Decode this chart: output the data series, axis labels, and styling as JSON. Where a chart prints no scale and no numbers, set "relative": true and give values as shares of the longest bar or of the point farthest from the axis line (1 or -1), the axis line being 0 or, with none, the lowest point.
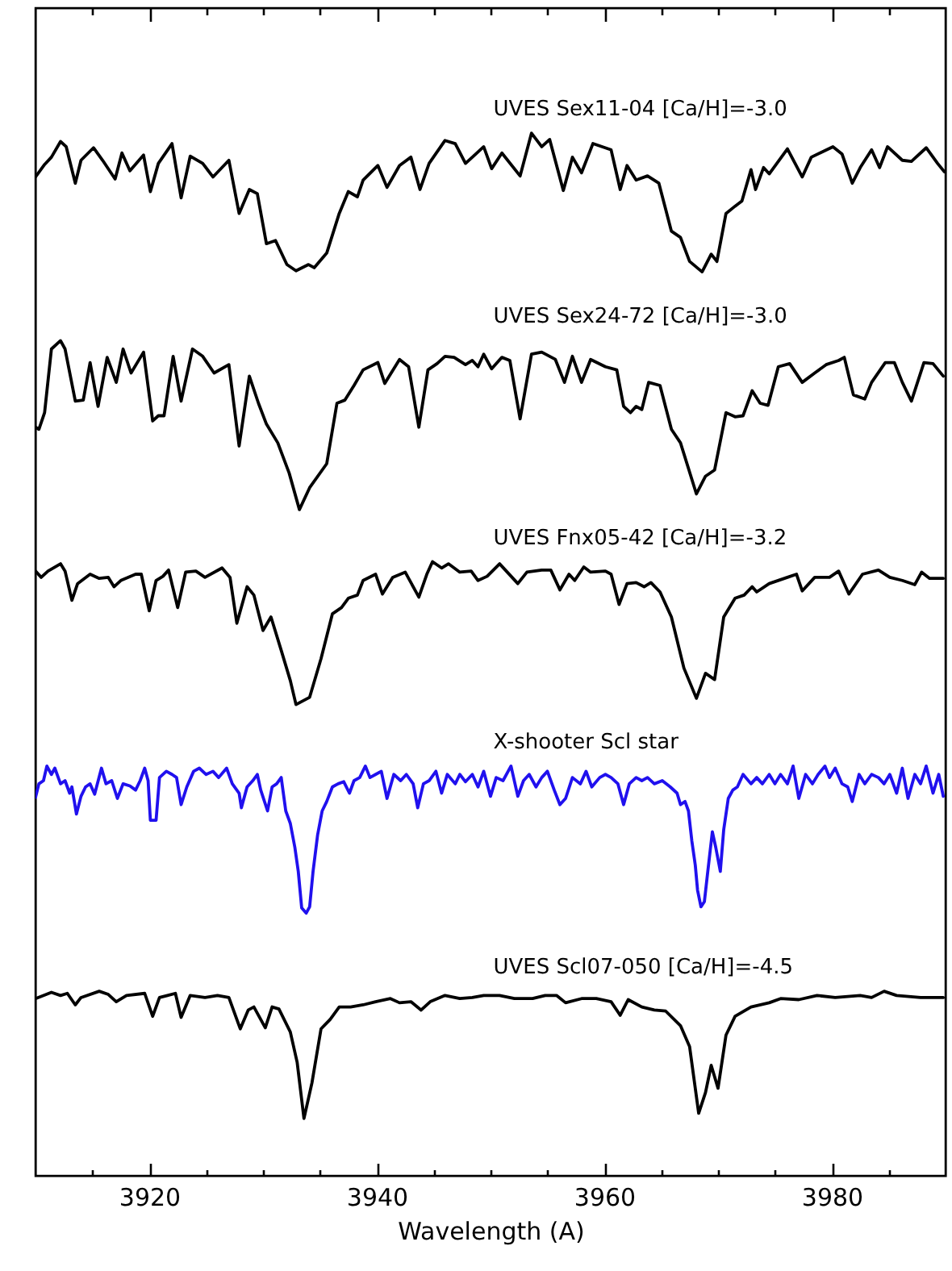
{
  "chart_data": {
    "type": "line",
    "xlabel": "Wavelength (A)",
    "xlim": [
      3910,
      3990
    ],
    "xticks": [
      {
        "value": 3915,
        "label": null
      },
      3920,
      {
        "value": 3925,
        "label": null
      },
      {
        "value": 3930,
        "label": null
      },
      {
        "value": 3935,
        "label": null
      },
      3940,
      {
        "value": 3945,
        "label": null
      },
      {
        "value": 3950,
        "label": null
      },
      {
        "value": 3955,
        "label": null
      },
      3960,
      {
        "value": 3965,
        "label": null
      },
      {
        "value": 3970,
        "label": null
      },
      {
        "value": 3975,
        "label": null
      },
      3980,
      {
        "value": 3985,
        "label": null
      }
    ],
    "relative": true,
    "series": [
      {
        "name": "UVES Sex11-04 [Ca/H]=-3.0",
        "color": "#000000",
        "x": [
          3910.0,
          3910.8,
          3911.4,
          3912.2,
          3912.7,
          3913.5,
          3914.0,
          3915.1,
          3915.9,
          3917.0,
          3917.6,
          3918.3,
          3919.5,
          3920.1,
          3920.8,
          3922.0,
          3922.8,
          3923.6,
          3924.7,
          3925.6,
          3927.0,
          3927.9,
          3928.8,
          3929.5,
          3930.3,
          3931.1,
          3932.1,
          3932.9,
          3934.0,
          3934.5,
          3935.6,
          3936.7,
          3937.5,
          3938.3,
          3938.8,
          3940.1,
          3940.9,
          3942.0,
          3943.0,
          3943.8,
          3944.6,
          3946.0,
          3946.9,
          3947.8,
          3948.5,
          3949.4,
          3950.1,
          3951.0,
          3952.6,
          3953.6,
          3954.5,
          3955.2,
          3956.4,
          3957.2,
          3958.0,
          3959.0,
          3960.6,
          3961.4,
          3962.0,
          3962.8,
          3963.8,
          3964.8,
          3965.9,
          3966.7,
          3967.5,
          3968.6,
          3969.4,
          3969.9,
          3970.7,
          3971.5,
          3972.1,
          3972.9,
          3973.3,
          3974.0,
          3974.5,
          3976.1,
          3977.4,
          3978.2,
          3980.1,
          3980.9,
          3981.8,
          3982.5,
          3983.5,
          3984.2,
          3984.9,
          3986.2,
          3987.0,
          3988.3,
          3989.3,
          3989.9
        ],
        "values": [
          0.958,
          0.97,
          0.977,
          0.992,
          0.987,
          0.952,
          0.974,
          0.986,
          0.974,
          0.956,
          0.981,
          0.964,
          0.979,
          0.944,
          0.971,
          0.99,
          0.938,
          0.978,
          0.971,
          0.958,
          0.974,
          0.923,
          0.946,
          0.942,
          0.894,
          0.897,
          0.874,
          0.868,
          0.874,
          0.871,
          0.885,
          0.923,
          0.944,
          0.939,
          0.955,
          0.969,
          0.948,
          0.969,
          0.977,
          0.946,
          0.971,
          0.993,
          0.99,
          0.971,
          0.978,
          0.987,
          0.966,
          0.981,
          0.959,
          1.0,
          0.987,
          0.994,
          0.945,
          0.977,
          0.962,
          0.99,
          0.984,
          0.946,
          0.969,
          0.955,
          0.959,
          0.952,
          0.906,
          0.9,
          0.877,
          0.867,
          0.884,
          0.877,
          0.923,
          0.93,
          0.935,
          0.965,
          0.946,
          0.967,
          0.961,
          0.985,
          0.958,
          0.977,
          0.987,
          0.98,
          0.952,
          0.967,
          0.984,
          0.967,
          0.987,
          0.974,
          0.973,
          0.986,
          0.971,
          0.963
        ]
      },
      {
        "name": "UVES Sex24-72 [Ca/H]=-3.0",
        "color": "#000000",
        "x": [
          3910.0,
          3910.3,
          3910.8,
          3911.4,
          3912.2,
          3912.6,
          3913.5,
          3914.2,
          3914.8,
          3915.5,
          3916.3,
          3917.1,
          3917.7,
          3918.4,
          3919.5,
          3920.3,
          3920.8,
          3921.3,
          3922.1,
          3922.8,
          3923.8,
          3924.7,
          3925.7,
          3927.0,
          3927.9,
          3928.8,
          3929.6,
          3930.3,
          3931.3,
          3932.3,
          3933.2,
          3934.1,
          3935.6,
          3936.5,
          3937.2,
          3938.0,
          3938.8,
          3940.1,
          3940.7,
          3942.0,
          3942.8,
          3943.7,
          3944.5,
          3945.3,
          3946.0,
          3946.8,
          3947.8,
          3948.4,
          3948.9,
          3949.4,
          3950.1,
          3951.0,
          3951.7,
          3952.6,
          3953.6,
          3954.5,
          3955.7,
          3956.5,
          3957.2,
          3958.0,
          3958.8,
          3960.1,
          3961.1,
          3961.7,
          3962.3,
          3962.8,
          3963.3,
          3963.9,
          3964.9,
          3965.9,
          3966.7,
          3968.1,
          3968.9,
          3969.7,
          3970.7,
          3971.5,
          3972.2,
          3973.0,
          3973.7,
          3974.4,
          3975.3,
          3976.3,
          3977.4,
          3978.5,
          3979.5,
          3980.6,
          3981.1,
          3981.9,
          3982.9,
          3983.5,
          3984.7,
          3985.5,
          3986.2,
          3987.0,
          3988.1,
          3988.9,
          3989.8
        ],
        "values": [
          0.718,
          0.716,
          0.732,
          0.793,
          0.801,
          0.793,
          0.743,
          0.744,
          0.78,
          0.738,
          0.785,
          0.761,
          0.793,
          0.77,
          0.79,
          0.724,
          0.729,
          0.729,
          0.786,
          0.743,
          0.793,
          0.786,
          0.77,
          0.778,
          0.7,
          0.767,
          0.741,
          0.721,
          0.703,
          0.674,
          0.639,
          0.66,
          0.683,
          0.741,
          0.744,
          0.758,
          0.773,
          0.78,
          0.76,
          0.783,
          0.776,
          0.718,
          0.773,
          0.779,
          0.786,
          0.785,
          0.778,
          0.782,
          0.776,
          0.788,
          0.774,
          0.785,
          0.782,
          0.726,
          0.788,
          0.79,
          0.783,
          0.761,
          0.786,
          0.761,
          0.783,
          0.776,
          0.773,
          0.738,
          0.732,
          0.738,
          0.735,
          0.761,
          0.758,
          0.716,
          0.703,
          0.654,
          0.671,
          0.677,
          0.732,
          0.728,
          0.729,
          0.753,
          0.741,
          0.739,
          0.776,
          0.779,
          0.761,
          0.77,
          0.778,
          0.782,
          0.785,
          0.749,
          0.745,
          0.761,
          0.78,
          0.78,
          0.761,
          0.743,
          0.78,
          0.779,
          0.767
        ]
      },
      {
        "name": "UVES Fnx05-42 [Ca/H]=-3.2",
        "color": "#000000",
        "x": [
          3910.0,
          3910.5,
          3911.1,
          3912.2,
          3912.6,
          3913.2,
          3913.7,
          3914.8,
          3915.6,
          3916.4,
          3916.9,
          3917.5,
          3918.8,
          3919.3,
          3920.0,
          3920.6,
          3921.2,
          3921.7,
          3922.5,
          3923.2,
          3924.1,
          3924.9,
          3926.4,
          3927.1,
          3927.7,
          3928.6,
          3929.2,
          3930.0,
          3930.7,
          3931.6,
          3932.4,
          3932.9,
          3934.1,
          3935.1,
          3936.1,
          3936.9,
          3937.5,
          3938.3,
          3938.8,
          3939.9,
          3940.5,
          3941.4,
          3942.5,
          3943.7,
          3944.4,
          3944.9,
          3945.7,
          3946.3,
          3947.3,
          3948.3,
          3948.9,
          3949.7,
          3950.8,
          3952.4,
          3953.2,
          3954.5,
          3955.3,
          3956.1,
          3956.9,
          3957.4,
          3958.2,
          3958.8,
          3960.1,
          3960.6,
          3961.3,
          3962.0,
          3962.8,
          3963.5,
          3964.1,
          3964.9,
          3965.9,
          3967.0,
          3968.1,
          3968.9,
          3969.7,
          3970.5,
          3971.5,
          3972.3,
          3973.0,
          3973.4,
          3974.5,
          3976.1,
          3976.9,
          3977.4,
          3978.5,
          3979.8,
          3980.6,
          3981.5,
          3982.7,
          3984.1,
          3985.1,
          3986.2,
          3987.3,
          3987.9,
          3988.6,
          3989.8
        ],
        "values": [
          0.58,
          0.574,
          0.58,
          0.587,
          0.58,
          0.552,
          0.568,
          0.577,
          0.573,
          0.574,
          0.565,
          0.571,
          0.577,
          0.577,
          0.542,
          0.571,
          0.575,
          0.581,
          0.545,
          0.579,
          0.58,
          0.574,
          0.583,
          0.574,
          0.53,
          0.565,
          0.557,
          0.523,
          0.536,
          0.504,
          0.475,
          0.452,
          0.459,
          0.496,
          0.539,
          0.545,
          0.554,
          0.557,
          0.571,
          0.577,
          0.558,
          0.574,
          0.579,
          0.555,
          0.577,
          0.589,
          0.583,
          0.587,
          0.579,
          0.58,
          0.571,
          0.575,
          0.587,
          0.568,
          0.579,
          0.581,
          0.581,
          0.562,
          0.577,
          0.571,
          0.584,
          0.579,
          0.58,
          0.577,
          0.548,
          0.568,
          0.569,
          0.565,
          0.569,
          0.56,
          0.536,
          0.487,
          0.458,
          0.482,
          0.476,
          0.536,
          0.554,
          0.557,
          0.565,
          0.56,
          0.568,
          0.574,
          0.577,
          0.561,
          0.574,
          0.574,
          0.58,
          0.558,
          0.577,
          0.581,
          0.574,
          0.571,
          0.567,
          0.579,
          0.573,
          0.573
        ]
      },
      {
        "name": "X-shooter Scl star",
        "color": "#2010ee",
        "x": [
          3910.0,
          3910.3,
          3910.7,
          3911.0,
          3911.4,
          3911.7,
          3912.2,
          3912.6,
          3913.0,
          3913.2,
          3913.6,
          3914.0,
          3914.4,
          3914.8,
          3915.2,
          3915.8,
          3916.2,
          3916.7,
          3917.2,
          3917.7,
          3918.3,
          3918.8,
          3919.2,
          3919.6,
          3919.9,
          3920.1,
          3920.6,
          3920.9,
          3921.5,
          3922.0,
          3922.4,
          3922.8,
          3923.3,
          3923.9,
          3924.4,
          3925.0,
          3925.6,
          3926.1,
          3926.8,
          3927.3,
          3927.9,
          3928.1,
          3928.6,
          3929.1,
          3929.5,
          3929.8,
          3930.4,
          3930.8,
          3931.2,
          3931.6,
          3932.0,
          3932.4,
          3932.8,
          3933.1,
          3933.4,
          3933.8,
          3934.1,
          3934.4,
          3934.8,
          3935.2,
          3935.6,
          3936.1,
          3936.6,
          3937.1,
          3937.6,
          3938.0,
          3938.5,
          3939.0,
          3939.4,
          3939.9,
          3940.4,
          3940.9,
          3941.5,
          3942.1,
          3942.6,
          3943.2,
          3943.6,
          3944.1,
          3944.6,
          3945.2,
          3945.7,
          3946.2,
          3946.9,
          3947.3,
          3947.8,
          3948.4,
          3948.9,
          3949.4,
          3950.0,
          3950.5,
          3951.1,
          3951.8,
          3952.4,
          3952.9,
          3953.4,
          3954.0,
          3954.5,
          3955.0,
          3955.6,
          3956.1,
          3956.6,
          3957.2,
          3957.9,
          3958.4,
          3958.9,
          3959.6,
          3960.1,
          3960.6,
          3961.2,
          3961.7,
          3962.2,
          3962.8,
          3963.3,
          3963.8,
          3964.4,
          3965.1,
          3965.8,
          3966.4,
          3966.7,
          3967.1,
          3967.4,
          3967.7,
          3968.0,
          3968.2,
          3968.5,
          3968.8,
          3969.1,
          3969.5,
          3969.8,
          3970.2,
          3970.5,
          3970.9,
          3971.3,
          3971.7,
          3972.2,
          3972.9,
          3973.4,
          3973.9,
          3974.5,
          3975.0,
          3975.5,
          3976.1,
          3976.6,
          3977.1,
          3977.7,
          3978.3,
          3978.8,
          3979.4,
          3979.8,
          3980.3,
          3980.9,
          3981.4,
          3981.8,
          3982.4,
          3982.9,
          3983.5,
          3984.1,
          3984.6,
          3985.1,
          3985.7,
          3986.2,
          3986.7,
          3987.3,
          3987.8,
          3988.3,
          3988.9,
          3989.4,
          3989.8
        ],
        "values": [
          0.363,
          0.376,
          0.379,
          0.393,
          0.385,
          0.391,
          0.376,
          0.379,
          0.367,
          0.373,
          0.347,
          0.364,
          0.373,
          0.376,
          0.366,
          0.391,
          0.376,
          0.379,
          0.362,
          0.376,
          0.374,
          0.37,
          0.379,
          0.391,
          0.379,
          0.341,
          0.341,
          0.382,
          0.388,
          0.385,
          0.382,
          0.356,
          0.373,
          0.388,
          0.391,
          0.385,
          0.388,
          0.382,
          0.391,
          0.376,
          0.367,
          0.353,
          0.373,
          0.379,
          0.385,
          0.37,
          0.35,
          0.373,
          0.376,
          0.382,
          0.35,
          0.338,
          0.315,
          0.292,
          0.257,
          0.252,
          0.258,
          0.292,
          0.327,
          0.35,
          0.359,
          0.373,
          0.376,
          0.378,
          0.367,
          0.379,
          0.382,
          0.393,
          0.382,
          0.385,
          0.388,
          0.362,
          0.385,
          0.379,
          0.385,
          0.376,
          0.353,
          0.376,
          0.379,
          0.388,
          0.367,
          0.385,
          0.376,
          0.385,
          0.378,
          0.385,
          0.373,
          0.388,
          0.364,
          0.382,
          0.379,
          0.393,
          0.364,
          0.379,
          0.385,
          0.373,
          0.382,
          0.388,
          0.37,
          0.356,
          0.362,
          0.382,
          0.376,
          0.388,
          0.373,
          0.382,
          0.385,
          0.382,
          0.376,
          0.356,
          0.376,
          0.382,
          0.379,
          0.382,
          0.376,
          0.379,
          0.373,
          0.367,
          0.356,
          0.359,
          0.35,
          0.321,
          0.298,
          0.274,
          0.258,
          0.263,
          0.292,
          0.33,
          0.315,
          0.292,
          0.332,
          0.362,
          0.37,
          0.373,
          0.385,
          0.376,
          0.382,
          0.376,
          0.385,
          0.376,
          0.385,
          0.376,
          0.393,
          0.362,
          0.385,
          0.376,
          0.385,
          0.393,
          0.382,
          0.391,
          0.376,
          0.373,
          0.359,
          0.385,
          0.376,
          0.385,
          0.382,
          0.376,
          0.385,
          0.367,
          0.391,
          0.362,
          0.385,
          0.376,
          0.393,
          0.367,
          0.385,
          0.364
        ]
      },
      {
        "name": "UVES Scl07-050 [Ca/H]=-4.5",
        "color": "#000000",
        "x": [
          3910.0,
          3911.4,
          3912.2,
          3912.8,
          3913.5,
          3914.0,
          3915.6,
          3916.4,
          3917.1,
          3918.0,
          3919.6,
          3920.3,
          3920.9,
          3921.6,
          3922.3,
          3922.8,
          3923.6,
          3924.9,
          3926.0,
          3927.0,
          3928.0,
          3928.7,
          3929.2,
          3930.2,
          3930.8,
          3931.4,
          3932.4,
          3933.0,
          3933.6,
          3934.3,
          3935.1,
          3935.9,
          3936.7,
          3937.7,
          3938.8,
          3939.9,
          3941.2,
          3942.0,
          3943.0,
          3943.9,
          3944.7,
          3946.0,
          3947.3,
          3948.4,
          3949.4,
          3950.8,
          3952.1,
          3953.7,
          3954.8,
          3955.8,
          3956.6,
          3958.0,
          3959.3,
          3960.6,
          3961.4,
          3962.1,
          3963.3,
          3964.4,
          3965.4,
          3966.7,
          3967.5,
          3968.3,
          3968.9,
          3969.4,
          3970.0,
          3970.7,
          3971.5,
          3972.9,
          3974.5,
          3975.5,
          3977.1,
          3978.7,
          3980.3,
          3982.5,
          3983.5,
          3984.6,
          3985.7,
          3987.8,
          3989.8
        ],
        "values": [
          0.17,
          0.176,
          0.173,
          0.175,
          0.164,
          0.171,
          0.177,
          0.174,
          0.167,
          0.173,
          0.175,
          0.153,
          0.171,
          0.173,
          0.175,
          0.152,
          0.173,
          0.171,
          0.173,
          0.171,
          0.141,
          0.159,
          0.162,
          0.142,
          0.162,
          0.16,
          0.138,
          0.109,
          0.055,
          0.089,
          0.141,
          0.15,
          0.162,
          0.162,
          0.164,
          0.167,
          0.17,
          0.166,
          0.167,
          0.159,
          0.167,
          0.173,
          0.17,
          0.171,
          0.173,
          0.173,
          0.17,
          0.17,
          0.173,
          0.173,
          0.166,
          0.17,
          0.17,
          0.167,
          0.154,
          0.169,
          0.162,
          0.159,
          0.158,
          0.144,
          0.124,
          0.06,
          0.08,
          0.106,
          0.084,
          0.135,
          0.153,
          0.162,
          0.166,
          0.17,
          0.169,
          0.173,
          0.171,
          0.173,
          0.171,
          0.177,
          0.173,
          0.171,
          0.171
        ]
      }
    ]
  }
}
